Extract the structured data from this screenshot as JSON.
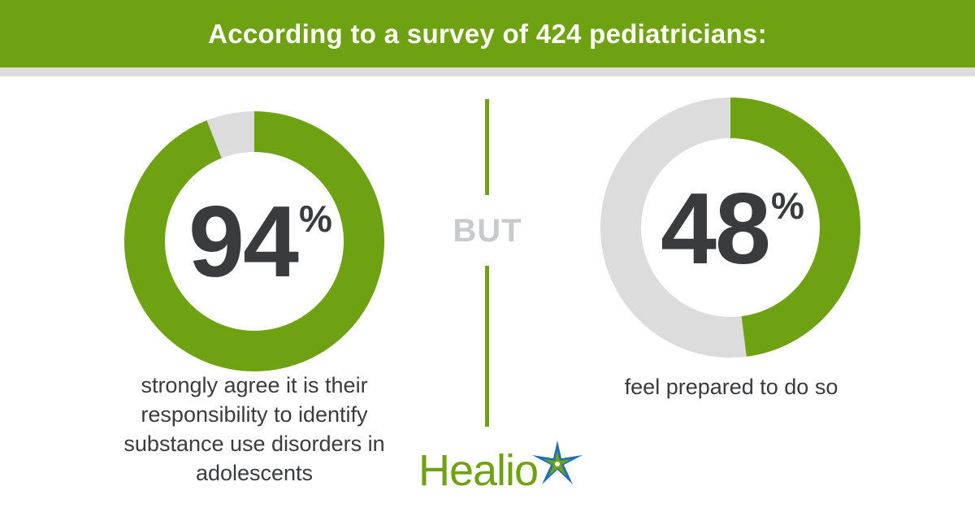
{
  "header": {
    "title": "According to a survey of 424 pediatricians:"
  },
  "divider_label": "BUT",
  "brand": {
    "name": "Healio"
  },
  "colors": {
    "green": "#6ea213",
    "gray": "#dcdcdc",
    "text": "#3a3b3d",
    "but_text": "#c9cacb",
    "star_blue": "#1f6fb2"
  },
  "chart_data": [
    {
      "type": "pie",
      "value": 94,
      "number_label": "94",
      "percent_sign": "%",
      "caption": "strongly agree it is their responsibility to identify substance use disorders in adolescents"
    },
    {
      "type": "pie",
      "value": 48,
      "number_label": "48",
      "percent_sign": "%",
      "caption": "feel prepared to do so"
    }
  ]
}
